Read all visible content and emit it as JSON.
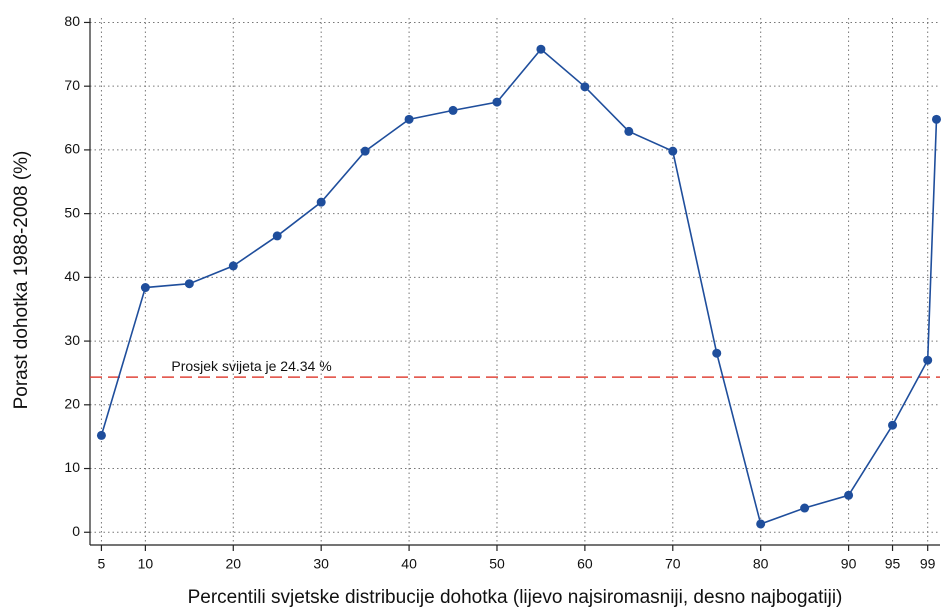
{
  "chart_data": {
    "type": "line",
    "xlabel": "Percentili svjetske distribucije dohotka (lijevo najsiromasniji, desno najbogatiji)",
    "ylabel": "Porast dohotka 1988-2008 (%)",
    "x": [
      5,
      10,
      15,
      20,
      25,
      30,
      35,
      40,
      45,
      50,
      55,
      60,
      65,
      70,
      75,
      80,
      85,
      90,
      95,
      99,
      100
    ],
    "series": [
      {
        "color": "#1f4e9c",
        "values": [
          15.2,
          38.4,
          39,
          41.8,
          46.5,
          51.8,
          59.8,
          64.8,
          66.2,
          67.5,
          75.8,
          69.9,
          62.9,
          59.8,
          28.1,
          1.3,
          3.8,
          5.8,
          16.8,
          27,
          64.8
        ]
      }
    ],
    "reference_line": {
      "value": 24.34,
      "color": "#e0463a",
      "label": "Prosjek svijeta je 24.34 %"
    },
    "xlim": [
      3.7,
      100.4
    ],
    "xticks": [
      5,
      10,
      20,
      30,
      40,
      50,
      60,
      70,
      80,
      90,
      95,
      99
    ],
    "ylim": [
      -2,
      80.7
    ],
    "yticks": [
      0,
      10,
      20,
      30,
      40,
      50,
      60,
      70,
      80
    ],
    "grid": true
  }
}
